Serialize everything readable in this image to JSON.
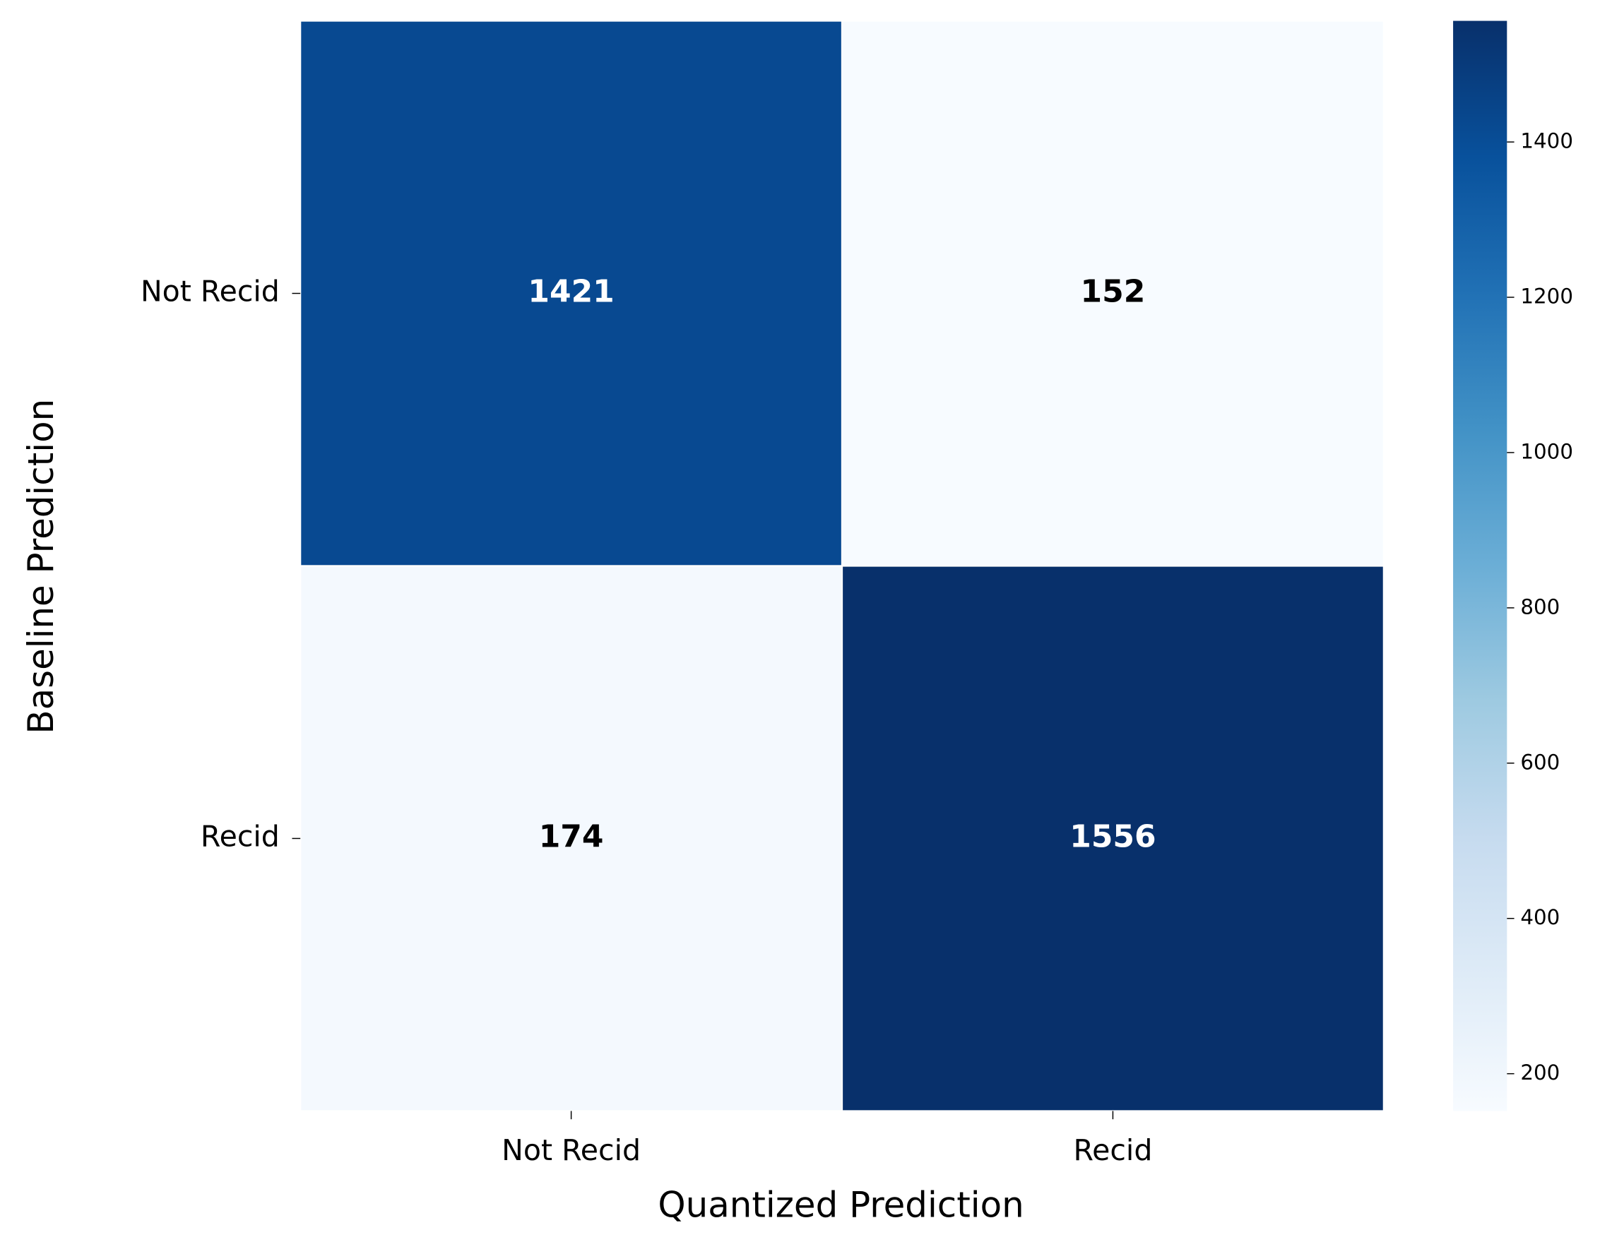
{
  "chart_data": {
    "type": "heatmap",
    "xlabel": "Quantized Prediction",
    "ylabel": "Baseline Prediction",
    "categories": [
      "Not Recid",
      "Recid"
    ],
    "y_categories": [
      "Not Recid",
      "Recid"
    ],
    "values": [
      [
        1421,
        152
      ],
      [
        174,
        1556
      ]
    ],
    "colormap": "Blues",
    "clim": [
      152,
      1556
    ],
    "cticks": [
      200,
      400,
      600,
      800,
      1000,
      1200,
      1400
    ]
  }
}
